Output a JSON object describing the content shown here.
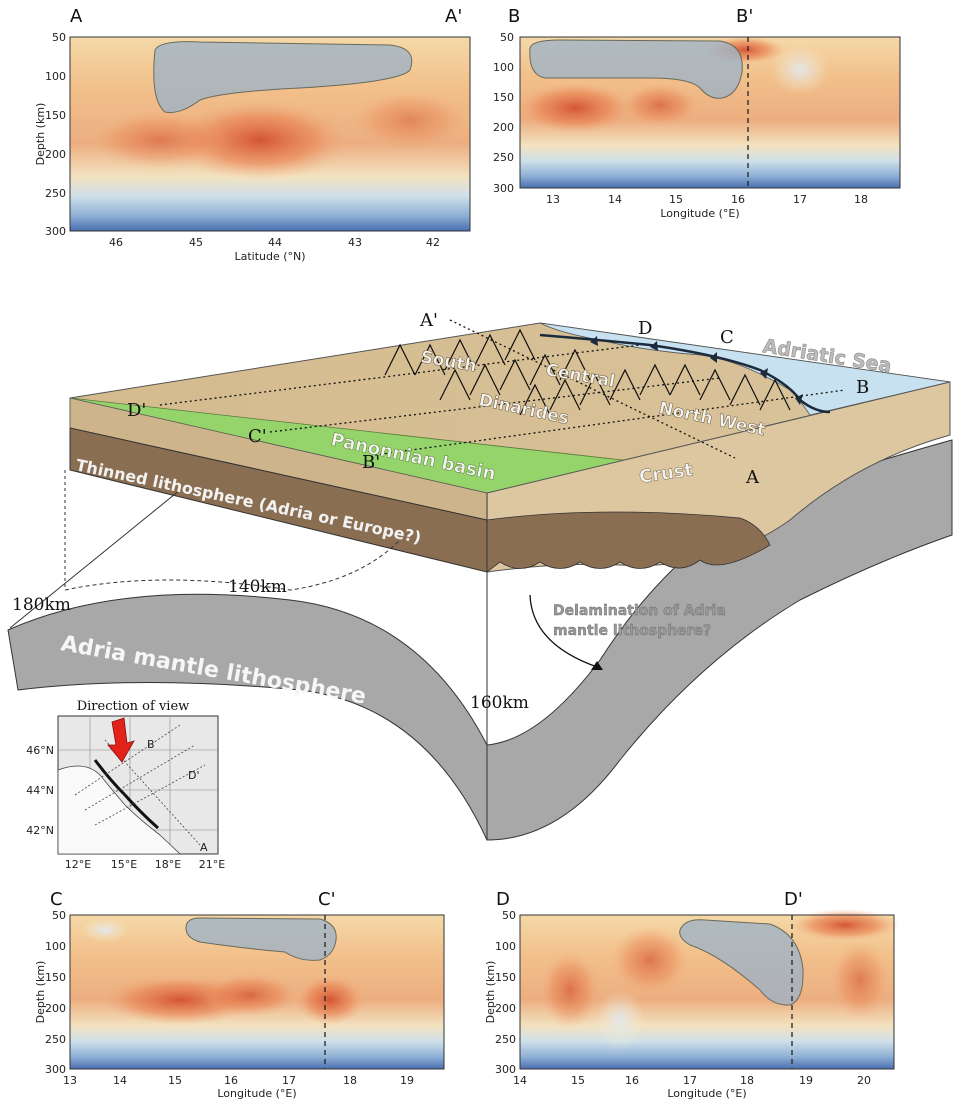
{
  "panels": {
    "A": {
      "left_label": "A",
      "right_label": "A'",
      "ylabel": "Depth (km)",
      "xlabel": "Latitude (°N)",
      "yticks": [
        "50",
        "100",
        "150",
        "200",
        "250",
        "300"
      ],
      "xticks": [
        "46",
        "45",
        "44",
        "43",
        "42"
      ]
    },
    "B": {
      "left_label": "B",
      "right_label": "B'",
      "yticks": [
        "50",
        "100",
        "150",
        "200",
        "250",
        "300"
      ],
      "xlabel": "Longitude (°E)",
      "xticks": [
        "13",
        "14",
        "15",
        "16",
        "17",
        "18"
      ]
    },
    "C": {
      "left_label": "C",
      "right_label": "C'",
      "ylabel": "Depth (km)",
      "xlabel": "Longitude (°E)",
      "yticks": [
        "50",
        "100",
        "150",
        "200",
        "250",
        "300"
      ],
      "xticks": [
        "13",
        "14",
        "15",
        "16",
        "17",
        "18",
        "19"
      ]
    },
    "D": {
      "left_label": "D",
      "right_label": "D'",
      "ylabel": "Depth (km)",
      "xlabel": "Longitude (°E)",
      "yticks": [
        "50",
        "100",
        "150",
        "200",
        "250",
        "300"
      ],
      "xticks": [
        "14",
        "15",
        "16",
        "17",
        "18",
        "19",
        "20"
      ]
    }
  },
  "block": {
    "sea": "Adriatic Sea",
    "south": "South",
    "central": "Central",
    "northwest": "North West",
    "dinarides": "Dinarides",
    "basin": "Panonnian basin",
    "crust": "Crust",
    "thinned": "Thinned lithosphere (Adria or Europe?)",
    "mantle": "Adria mantle lithosphere",
    "delam1": "Delamination of Adria",
    "delam2": "mantle lithosphere?",
    "d180": "180km",
    "d140": "140km",
    "d160": "160km",
    "A": "A",
    "Ap": "A'",
    "B": "B",
    "Bp": "B'",
    "C": "C",
    "Cp": "C'",
    "D": "D",
    "Dp": "D'"
  },
  "inset": {
    "title": "Direction of view",
    "lat": [
      "46°N",
      "44°N",
      "42°N"
    ],
    "lon": [
      "12°E",
      "15°E",
      "18°E",
      "21°E"
    ],
    "B": "B",
    "Dp": "D'",
    "A": "A"
  },
  "colors": {
    "red": "#c8402f",
    "orange": "#f0a060",
    "yellow": "#f4dca0",
    "blue": "#6d8fc4",
    "ocean": "#c7e1f0",
    "plain": "#d8c39c",
    "basin": "#95d36b",
    "lith": "#8a6e52",
    "mantle": "#a7a7a7"
  }
}
